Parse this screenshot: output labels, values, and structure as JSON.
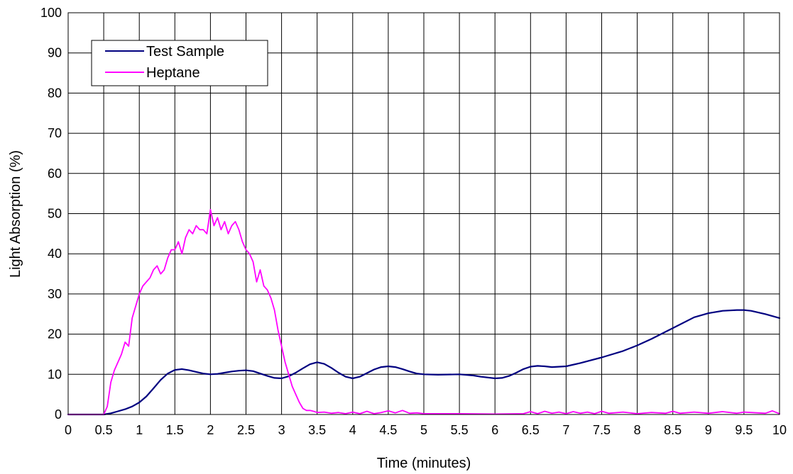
{
  "chart_data": {
    "type": "line",
    "title": "",
    "xlabel": "Time (minutes)",
    "ylabel": "Light Absorption (%)",
    "xlim": [
      0,
      10
    ],
    "ylim": [
      0,
      100
    ],
    "x_ticks": [
      0,
      0.5,
      1,
      1.5,
      2,
      2.5,
      3,
      3.5,
      4,
      4.5,
      5,
      5.5,
      6,
      6.5,
      7,
      7.5,
      8,
      8.5,
      9,
      9.5,
      10
    ],
    "x_tick_labels": [
      "0",
      "0.5",
      "1",
      "1.5",
      "2",
      "2.5",
      "3",
      "3.5",
      "4",
      "4.5",
      "5",
      "5.5",
      "6",
      "6.5",
      "7",
      "7.5",
      "8",
      "8.5",
      "9",
      "9.5",
      "10"
    ],
    "y_ticks": [
      0,
      10,
      20,
      30,
      40,
      50,
      60,
      70,
      80,
      90,
      100
    ],
    "y_tick_labels": [
      "0",
      "10",
      "20",
      "30",
      "40",
      "50",
      "60",
      "70",
      "80",
      "90",
      "100"
    ],
    "grid": "major gridlines on both axes",
    "legend": {
      "position": "top-left",
      "entries": [
        "Test Sample",
        "Heptane"
      ]
    },
    "series": [
      {
        "name": "Test Sample",
        "color": "#000080",
        "x": [
          0,
          0.25,
          0.5,
          0.6,
          0.7,
          0.8,
          0.9,
          1.0,
          1.1,
          1.2,
          1.3,
          1.4,
          1.5,
          1.6,
          1.7,
          1.8,
          1.9,
          2.0,
          2.1,
          2.2,
          2.3,
          2.4,
          2.5,
          2.6,
          2.7,
          2.8,
          2.9,
          3.0,
          3.1,
          3.2,
          3.3,
          3.4,
          3.5,
          3.6,
          3.7,
          3.8,
          3.9,
          4.0,
          4.1,
          4.2,
          4.3,
          4.4,
          4.5,
          4.6,
          4.7,
          4.8,
          4.9,
          5.0,
          5.2,
          5.5,
          5.7,
          5.8,
          6.0,
          6.1,
          6.2,
          6.3,
          6.4,
          6.5,
          6.6,
          6.7,
          6.8,
          7.0,
          7.2,
          7.5,
          7.8,
          8.0,
          8.2,
          8.5,
          8.8,
          9.0,
          9.2,
          9.4,
          9.5,
          9.6,
          9.8,
          10.0
        ],
        "y": [
          0,
          0,
          0,
          0.3,
          0.8,
          1.3,
          2.0,
          3.0,
          4.5,
          6.5,
          8.6,
          10.2,
          11.1,
          11.3,
          11.0,
          10.6,
          10.2,
          10.0,
          10.1,
          10.4,
          10.7,
          10.9,
          11.0,
          10.8,
          10.2,
          9.6,
          9.1,
          9.0,
          9.5,
          10.4,
          11.5,
          12.5,
          13.0,
          12.6,
          11.6,
          10.4,
          9.4,
          9.0,
          9.4,
          10.3,
          11.2,
          11.8,
          12.0,
          11.8,
          11.3,
          10.7,
          10.2,
          10.0,
          9.9,
          10.0,
          9.7,
          9.4,
          9.0,
          9.1,
          9.6,
          10.4,
          11.3,
          11.9,
          12.1,
          12.0,
          11.8,
          12.0,
          12.8,
          14.2,
          15.8,
          17.2,
          18.8,
          21.5,
          24.2,
          25.2,
          25.8,
          26.0,
          26.0,
          25.8,
          25.0,
          24.0
        ]
      },
      {
        "name": "Heptane",
        "color": "#FF00FF",
        "x": [
          0,
          0.25,
          0.5,
          0.55,
          0.6,
          0.65,
          0.7,
          0.75,
          0.8,
          0.85,
          0.9,
          0.95,
          1.0,
          1.05,
          1.1,
          1.15,
          1.2,
          1.25,
          1.3,
          1.35,
          1.4,
          1.45,
          1.5,
          1.55,
          1.6,
          1.65,
          1.7,
          1.75,
          1.8,
          1.85,
          1.9,
          1.95,
          2.0,
          2.05,
          2.1,
          2.15,
          2.2,
          2.25,
          2.3,
          2.35,
          2.4,
          2.45,
          2.5,
          2.55,
          2.6,
          2.65,
          2.7,
          2.75,
          2.8,
          2.85,
          2.9,
          2.95,
          3.0,
          3.05,
          3.1,
          3.15,
          3.2,
          3.25,
          3.3,
          3.35,
          3.4,
          3.45,
          3.5,
          3.6,
          3.7,
          3.8,
          3.9,
          4.0,
          4.1,
          4.2,
          4.3,
          4.4,
          4.5,
          4.6,
          4.7,
          4.8,
          4.9,
          5.0,
          5.5,
          6.0,
          6.4,
          6.5,
          6.6,
          6.7,
          6.8,
          6.9,
          7.0,
          7.1,
          7.2,
          7.3,
          7.4,
          7.5,
          7.6,
          7.8,
          8.0,
          8.2,
          8.4,
          8.5,
          8.6,
          8.8,
          9.0,
          9.2,
          9.4,
          9.5,
          9.6,
          9.8,
          9.9,
          10.0
        ],
        "y": [
          0,
          0,
          0,
          2,
          8,
          11,
          13,
          15,
          18,
          17,
          24,
          27,
          30,
          32,
          33,
          34,
          36,
          37,
          35,
          36,
          39,
          41,
          41,
          43,
          40,
          44,
          46,
          45,
          47,
          46,
          46,
          45,
          51,
          47,
          49,
          46,
          48,
          45,
          47,
          48,
          46,
          43,
          41,
          40,
          38,
          33,
          36,
          32,
          31,
          29,
          26,
          21,
          17,
          13,
          10,
          7,
          5,
          3,
          1.5,
          1,
          1,
          0.8,
          0.5,
          0.6,
          0.3,
          0.5,
          0.2,
          0.6,
          0.2,
          0.8,
          0.2,
          0.5,
          0.9,
          0.4,
          1,
          0.3,
          0.4,
          0.2,
          0.2,
          0.1,
          0.2,
          0.7,
          0.2,
          0.8,
          0.3,
          0.6,
          0.2,
          0.7,
          0.3,
          0.6,
          0.2,
          0.8,
          0.3,
          0.6,
          0.2,
          0.5,
          0.3,
          0.8,
          0.3,
          0.6,
          0.3,
          0.7,
          0.3,
          0.6,
          0.5,
          0.3,
          0.9,
          0.2
        ]
      }
    ]
  }
}
